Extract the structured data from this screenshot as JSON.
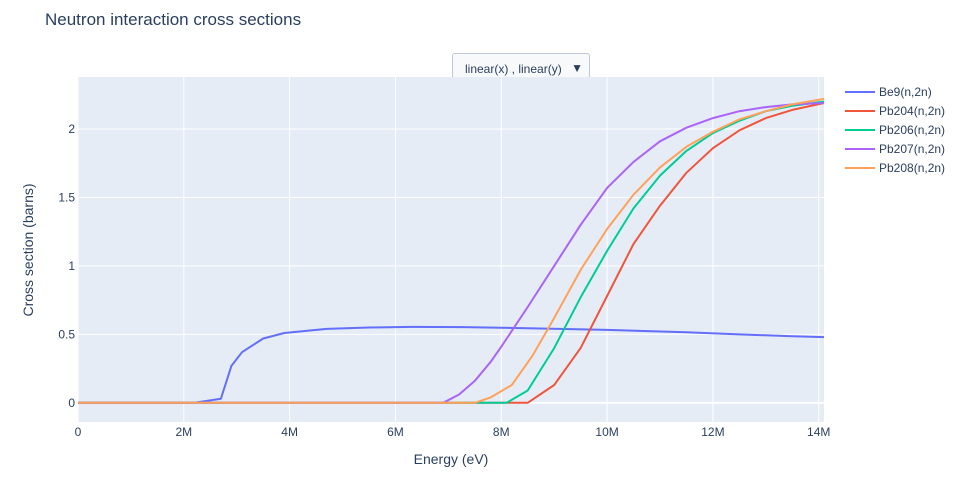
{
  "chart_data": {
    "type": "line",
    "title": "Neutron interaction cross sections",
    "xlabel": "Energy (eV)",
    "ylabel": "Cross section (barns)",
    "xlim": [
      0,
      14100000
    ],
    "ylim": [
      -0.14,
      2.38
    ],
    "x_ticks": [
      {
        "value": 0,
        "label": "0"
      },
      {
        "value": 2000000,
        "label": "2M"
      },
      {
        "value": 4000000,
        "label": "4M"
      },
      {
        "value": 6000000,
        "label": "6M"
      },
      {
        "value": 8000000,
        "label": "8M"
      },
      {
        "value": 10000000,
        "label": "10M"
      },
      {
        "value": 12000000,
        "label": "12M"
      },
      {
        "value": 14000000,
        "label": "14M"
      }
    ],
    "y_ticks": [
      {
        "value": 0,
        "label": "0"
      },
      {
        "value": 0.5,
        "label": "0.5"
      },
      {
        "value": 1,
        "label": "1"
      },
      {
        "value": 1.5,
        "label": "1.5"
      },
      {
        "value": 2,
        "label": "2"
      }
    ],
    "legend_position": "top-right",
    "series": [
      {
        "name": "Be9(n,2n)",
        "color": "#636efa",
        "x": [
          0,
          2200000,
          2700000,
          2900000,
          3100000,
          3300000,
          3500000,
          3900000,
          4700000,
          5500000,
          6300000,
          7300000,
          8500000,
          10000000,
          11500000,
          12500000,
          13500000,
          14100000
        ],
        "y": [
          0,
          0,
          0.03,
          0.27,
          0.37,
          0.42,
          0.47,
          0.51,
          0.54,
          0.55,
          0.555,
          0.553,
          0.545,
          0.533,
          0.515,
          0.5,
          0.487,
          0.48
        ]
      },
      {
        "name": "Pb204(n,2n)",
        "color": "#ef553b",
        "x": [
          0,
          8500000,
          9000000,
          9500000,
          10000000,
          10500000,
          11000000,
          11500000,
          12000000,
          12500000,
          13000000,
          13500000,
          14100000
        ],
        "y": [
          0,
          0,
          0.13,
          0.4,
          0.78,
          1.16,
          1.44,
          1.68,
          1.86,
          1.99,
          2.08,
          2.14,
          2.19
        ]
      },
      {
        "name": "Pb206(n,2n)",
        "color": "#00cc96",
        "x": [
          0,
          8100000,
          8500000,
          9000000,
          9500000,
          10000000,
          10500000,
          11000000,
          11500000,
          12000000,
          12500000,
          13000000,
          13500000,
          14100000
        ],
        "y": [
          0,
          0,
          0.09,
          0.4,
          0.77,
          1.11,
          1.42,
          1.66,
          1.84,
          1.97,
          2.06,
          2.13,
          2.17,
          2.2
        ]
      },
      {
        "name": "Pb207(n,2n)",
        "color": "#ab63fa",
        "x": [
          0,
          6900000,
          7200000,
          7500000,
          7800000,
          8000000,
          8500000,
          9000000,
          9500000,
          10000000,
          10500000,
          11000000,
          11500000,
          12000000,
          12500000,
          13000000,
          13500000,
          14100000
        ],
        "y": [
          0,
          0,
          0.06,
          0.16,
          0.3,
          0.41,
          0.7,
          1.0,
          1.3,
          1.57,
          1.76,
          1.91,
          2.01,
          2.08,
          2.13,
          2.16,
          2.18,
          2.19
        ]
      },
      {
        "name": "Pb208(n,2n)",
        "color": "#ffa15a",
        "x": [
          0,
          7500000,
          7800000,
          8200000,
          8600000,
          9000000,
          9500000,
          10000000,
          10500000,
          11000000,
          11500000,
          12000000,
          12500000,
          13000000,
          13500000,
          14100000
        ],
        "y": [
          0,
          0,
          0.04,
          0.13,
          0.35,
          0.62,
          0.97,
          1.27,
          1.52,
          1.72,
          1.87,
          1.98,
          2.07,
          2.13,
          2.18,
          2.22
        ]
      }
    ]
  },
  "controls": {
    "scale_dropdown_label": "linear(x) , linear(y)",
    "scale_dropdown_icon": "triangle-down-icon"
  }
}
